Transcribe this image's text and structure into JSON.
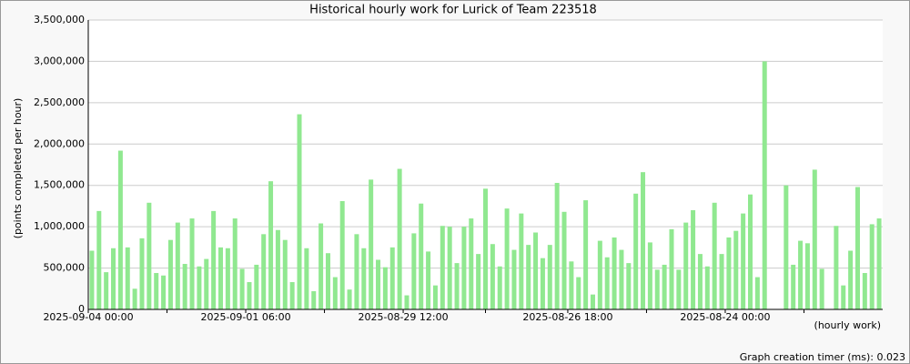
{
  "chart_data": {
    "type": "bar",
    "title": "Historical hourly work for Lurick of Team 223518",
    "y_label": "(points completed per hour)",
    "x_label": "(hourly work)",
    "footer": "Graph creation timer (ms): 0.023",
    "color": "#90e890",
    "grid": true,
    "ylim": [
      0,
      3500000
    ],
    "yticks": [
      0,
      {
        "value": 500000,
        "label": "500,000"
      },
      {
        "value": 1000000,
        "label": "1,000,000"
      },
      {
        "value": 1500000,
        "label": "1,500,000"
      },
      {
        "value": 2000000,
        "label": "2,000,000"
      },
      {
        "value": 2500000,
        "label": "2,500,000"
      },
      {
        "value": 3000000,
        "label": "3,000,000"
      },
      {
        "value": 3500000,
        "label": "3,500,000"
      }
    ],
    "categories": [
      "2025-09-04 00:00",
      null,
      null,
      null,
      null,
      null,
      null,
      null,
      null,
      null,
      null,
      null,
      null,
      null,
      null,
      null,
      null,
      null,
      null,
      null,
      null,
      null,
      "2025-09-01 06:00",
      null,
      null,
      null,
      null,
      null,
      null,
      null,
      null,
      null,
      null,
      null,
      null,
      null,
      null,
      null,
      null,
      null,
      null,
      null,
      null,
      null,
      "2025-08-29 12:00",
      null,
      null,
      null,
      null,
      null,
      null,
      null,
      null,
      null,
      null,
      null,
      null,
      null,
      null,
      null,
      null,
      null,
      null,
      null,
      null,
      null,
      null,
      "2025-08-26 18:00",
      null,
      null,
      null,
      null,
      null,
      null,
      null,
      null,
      null,
      null,
      null,
      null,
      null,
      null,
      null,
      null,
      null,
      null,
      null,
      null,
      null,
      "2025-08-24 00:00",
      null,
      null,
      null,
      null,
      null,
      null,
      null,
      null,
      null,
      null,
      null,
      null,
      null,
      null,
      null,
      null,
      null,
      null,
      null,
      null,
      null
    ],
    "values": [
      710000,
      1190000,
      450000,
      740000,
      1920000,
      750000,
      250000,
      860000,
      1290000,
      440000,
      410000,
      840000,
      1050000,
      550000,
      1100000,
      520000,
      610000,
      1190000,
      750000,
      740000,
      1100000,
      490000,
      330000,
      540000,
      910000,
      1550000,
      960000,
      840000,
      330000,
      2360000,
      740000,
      220000,
      1040000,
      680000,
      390000,
      1310000,
      240000,
      910000,
      740000,
      1570000,
      600000,
      510000,
      750000,
      1700000,
      170000,
      920000,
      1280000,
      700000,
      290000,
      1010000,
      1000000,
      560000,
      1000000,
      1100000,
      670000,
      1460000,
      790000,
      520000,
      1220000,
      720000,
      1160000,
      780000,
      930000,
      620000,
      780000,
      1530000,
      1180000,
      580000,
      390000,
      1320000,
      180000,
      830000,
      630000,
      870000,
      720000,
      560000,
      1400000,
      1660000,
      810000,
      480000,
      540000,
      970000,
      480000,
      1050000,
      1200000,
      670000,
      520000,
      1290000,
      670000,
      870000,
      950000,
      1160000,
      1390000,
      390000,
      3000000,
      0,
      0,
      1500000,
      540000,
      830000,
      800000,
      1690000,
      490000,
      0,
      1010000,
      290000,
      710000,
      1480000,
      440000,
      1030000,
      1100000
    ]
  }
}
